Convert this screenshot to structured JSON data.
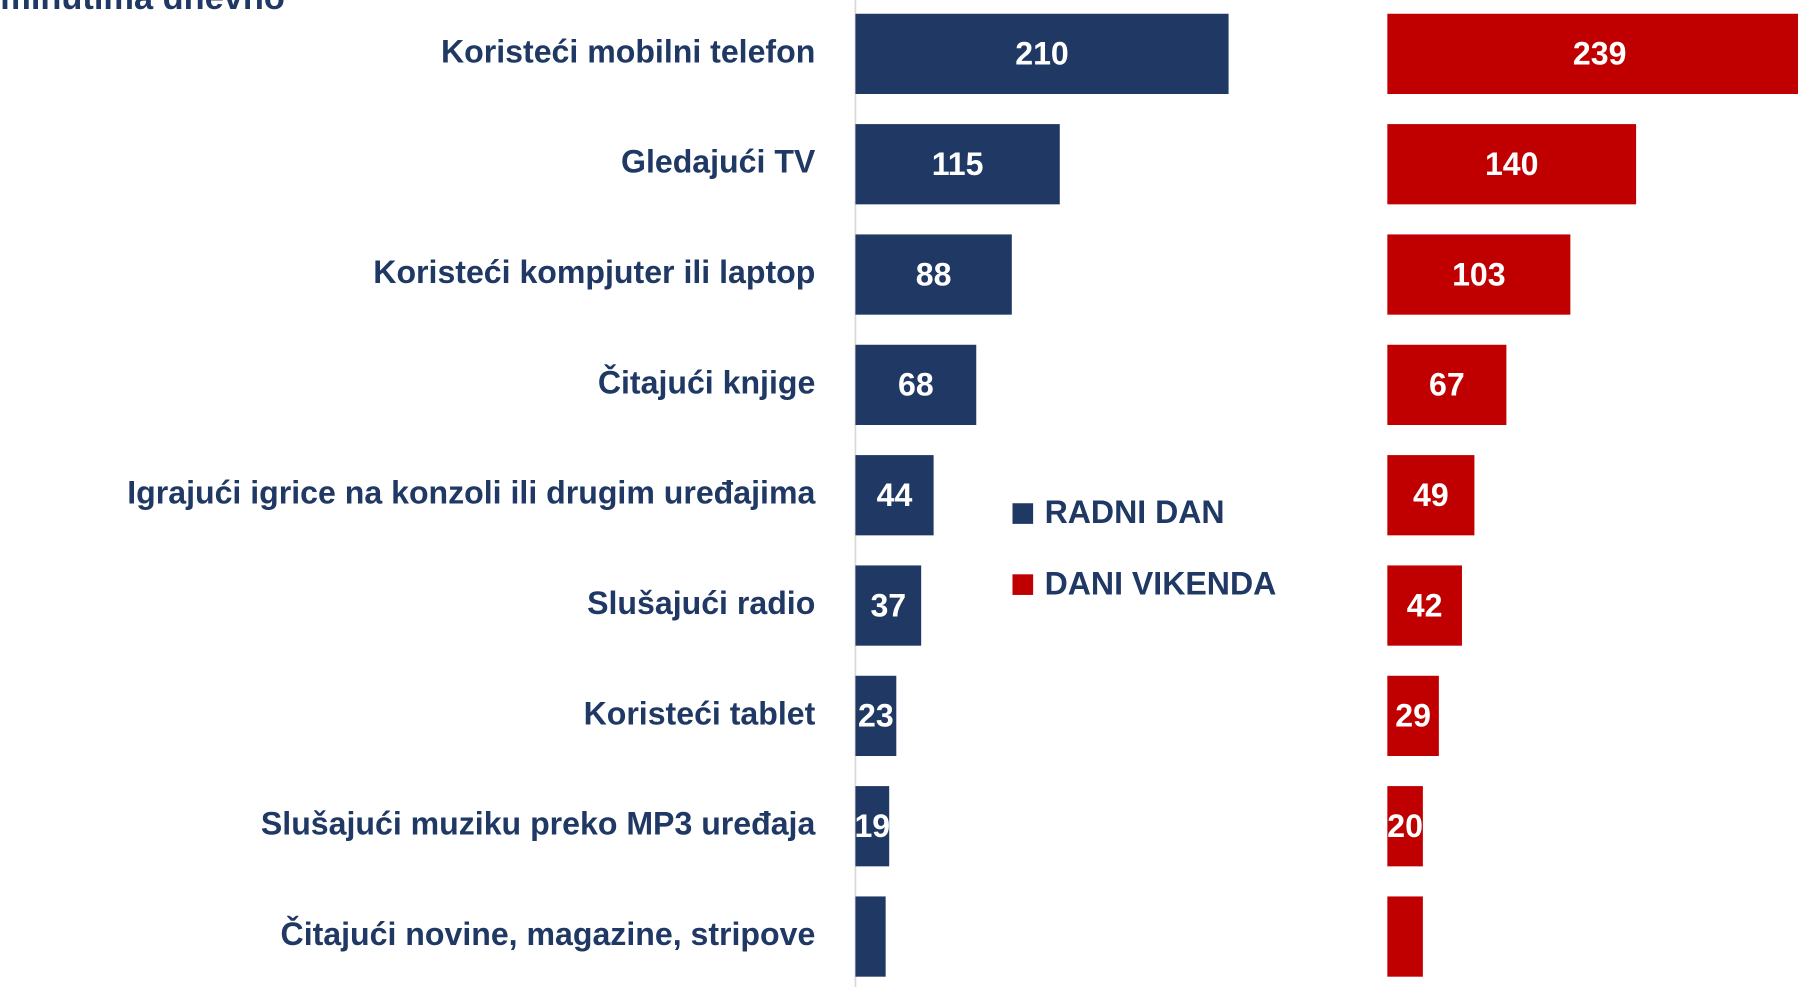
{
  "chart_data": {
    "type": "bar",
    "orientation": "horizontal",
    "title": "minutima dnevno",
    "categories": [
      "Koristeći mobilni telefon",
      "Gledajući TV",
      "Koristeći kompjuter ili laptop",
      "Čitajući knjige",
      "Igrajući igrice na konzoli ili drugim uređajima",
      "Slušajući radio",
      "Koristeći tablet",
      "Slušajući muziku preko MP3 uređaja",
      "Čitajući novine, magazine, stripove"
    ],
    "series": [
      {
        "name": "RADNI DAN",
        "color": "#1f3864",
        "values": [
          210,
          115,
          88,
          68,
          44,
          37,
          23,
          19,
          17
        ],
        "value_labels": [
          "210",
          "115",
          "88",
          "68",
          "44",
          "37",
          "23",
          "19",
          null
        ]
      },
      {
        "name": "DANI VIKENDA",
        "color": "#c00000",
        "values": [
          239,
          140,
          103,
          67,
          49,
          42,
          29,
          20,
          20
        ],
        "value_labels": [
          "239",
          "140",
          "103",
          "67",
          "49",
          "42",
          "29",
          "20",
          null
        ]
      }
    ]
  }
}
